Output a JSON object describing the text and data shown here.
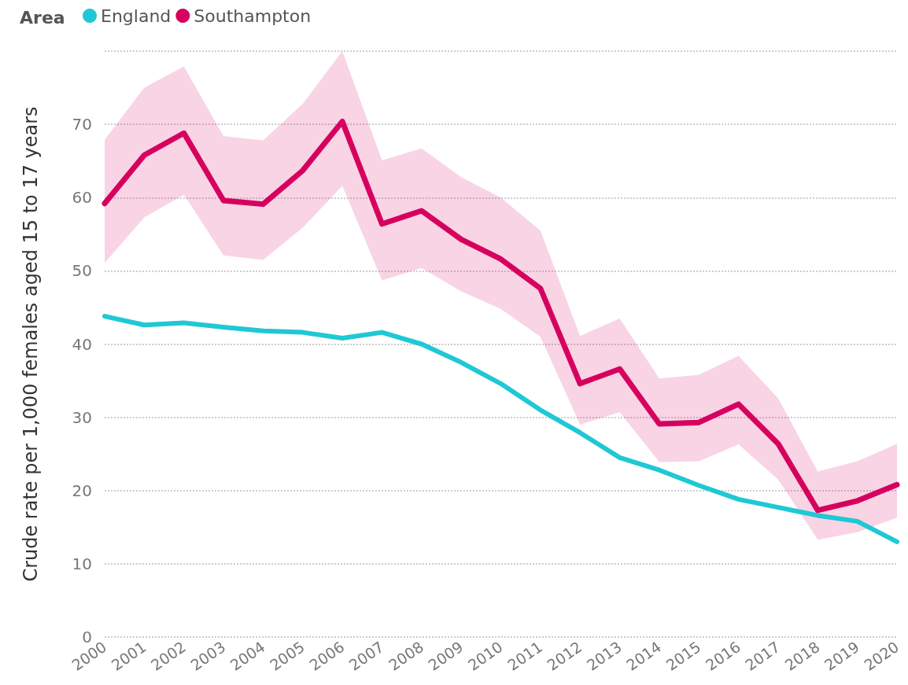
{
  "chart_data": {
    "type": "line",
    "ylabel": "Crude rate per 1,000 females aged 15 to 17 years",
    "legend_title": "Area",
    "legend": "top left",
    "grid": "y",
    "marker": "none",
    "line_style": "solid",
    "categories": [
      "2000",
      "2001",
      "2002",
      "2003",
      "2004",
      "2005",
      "2006",
      "2007",
      "2008",
      "2009",
      "2010",
      "2011",
      "2012",
      "2013",
      "2014",
      "2015",
      "2016",
      "2017",
      "2018",
      "2019",
      "2020"
    ],
    "ylim": [
      0,
      80
    ],
    "yticks": [
      0,
      10,
      20,
      30,
      40,
      50,
      60,
      70,
      {
        "value": 80,
        "label": null
      }
    ],
    "series": [
      {
        "name": "England",
        "color": "#1fc8d4",
        "values": [
          43.8,
          42.6,
          42.9,
          42.3,
          41.8,
          41.6,
          40.8,
          41.6,
          40.0,
          37.5,
          34.6,
          31.0,
          27.9,
          24.5,
          22.8,
          20.7,
          18.8,
          17.7,
          16.6,
          15.8,
          13.0
        ]
      },
      {
        "name": "Southampton",
        "color": "#d6005f",
        "values": [
          59.2,
          65.8,
          68.8,
          59.6,
          59.1,
          63.7,
          70.4,
          56.4,
          58.2,
          54.3,
          51.6,
          47.6,
          34.6,
          36.6,
          29.1,
          29.3,
          31.8,
          26.4,
          17.3,
          18.6,
          20.8
        ],
        "lower": [
          51.1,
          57.3,
          60.4,
          52.1,
          51.5,
          55.9,
          61.6,
          48.7,
          50.4,
          47.2,
          44.8,
          41.0,
          29.0,
          30.7,
          23.9,
          24.0,
          26.3,
          21.5,
          13.3,
          14.3,
          16.3
        ],
        "upper": [
          67.9,
          75.0,
          77.9,
          68.4,
          67.8,
          72.8,
          80.0,
          65.1,
          66.7,
          62.8,
          60.0,
          55.5,
          41.1,
          43.5,
          35.3,
          35.8,
          38.4,
          32.6,
          22.6,
          24.0,
          26.4
        ]
      }
    ]
  }
}
